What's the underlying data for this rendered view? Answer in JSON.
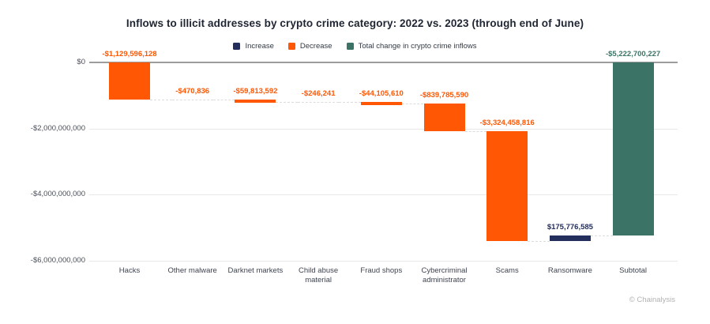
{
  "title": "Inflows to illicit addresses by crypto crime category: 2022 vs. 2023 (through end of June)",
  "copyright": "© Chainalysis",
  "colors": {
    "increase": "#242e5c",
    "decrease": "#ff5703",
    "total": "#3b7366",
    "zero_line": "#9d9d9d",
    "gridline": "#e8e8e8"
  },
  "legend": [
    {
      "label": "Increase",
      "type": "increase"
    },
    {
      "label": "Decrease",
      "type": "decrease"
    },
    {
      "label": "Total change in crypto crime inflows",
      "type": "total"
    }
  ],
  "chart_data": {
    "type": "bar",
    "subtype": "waterfall",
    "title": "Inflows to illicit addresses by crypto crime category: 2022 vs. 2023 (through end of June)",
    "xlabel": "",
    "ylabel": "",
    "legend_position": "top",
    "grid": true,
    "y_axis": {
      "range": [
        -6000000000,
        0
      ],
      "ticks": [
        {
          "label": "$0",
          "value": 0
        },
        {
          "label": "-$2,000,000,000",
          "value": -2000000000
        },
        {
          "label": "-$4,000,000,000",
          "value": -4000000000
        },
        {
          "label": "-$6,000,000,000",
          "value": -6000000000
        }
      ]
    },
    "categories": [
      "Hacks",
      "Other malware",
      "Darknet markets",
      "Child abuse material",
      "Fraud shops",
      "Cybercriminal administrator",
      "Scams",
      "Ransomware",
      "Subtotal"
    ],
    "bars": [
      {
        "category": "Hacks",
        "value": -1129596128,
        "label": "-$1,129,596,128",
        "type": "decrease"
      },
      {
        "category": "Other malware",
        "value": -470836,
        "label": "-$470,836",
        "type": "decrease"
      },
      {
        "category": "Darknet markets",
        "value": -59813592,
        "label": "-$59,813,592",
        "type": "decrease"
      },
      {
        "category": "Child abuse material",
        "value": -246241,
        "label": "-$246,241",
        "type": "decrease"
      },
      {
        "category": "Fraud shops",
        "value": -44105610,
        "label": "-$44,105,610",
        "type": "decrease"
      },
      {
        "category": "Cybercriminal administrator",
        "value": -839785590,
        "label": "-$839,785,590",
        "type": "decrease"
      },
      {
        "category": "Scams",
        "value": -3324458816,
        "label": "-$3,324,458,816",
        "type": "decrease"
      },
      {
        "category": "Ransomware",
        "value": 175776585,
        "label": "$175,776,585",
        "type": "increase"
      },
      {
        "category": "Subtotal",
        "value": -5222700227,
        "label": "-$5,222,700,227",
        "type": "total"
      }
    ]
  }
}
